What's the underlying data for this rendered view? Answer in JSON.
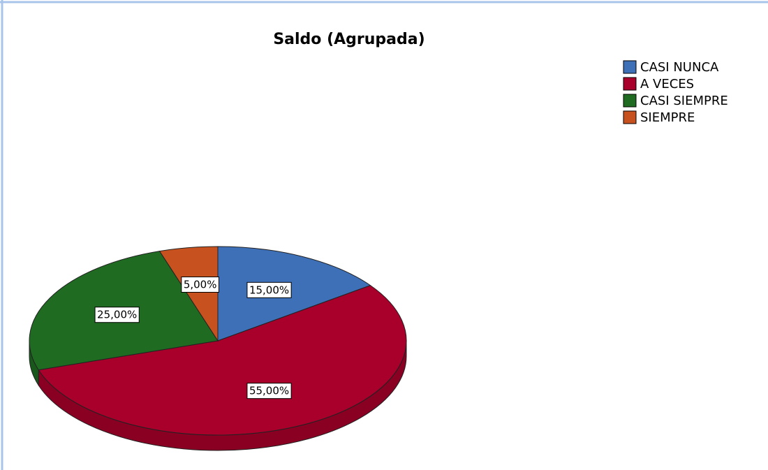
{
  "chart_data": {
    "type": "pie",
    "title": "Saldo (Agrupada)",
    "categories": [
      "CASI NUNCA",
      "A VECES",
      "CASI SIEMPRE",
      "SIEMPRE"
    ],
    "values": [
      15,
      55,
      25,
      5
    ],
    "value_labels": [
      "15,00%",
      "55,00%",
      "25,00%",
      "5,00%"
    ],
    "colors": [
      "#3e70b8",
      "#a8002b",
      "#1f6b21",
      "#c7521f"
    ],
    "legend": "top-right"
  }
}
